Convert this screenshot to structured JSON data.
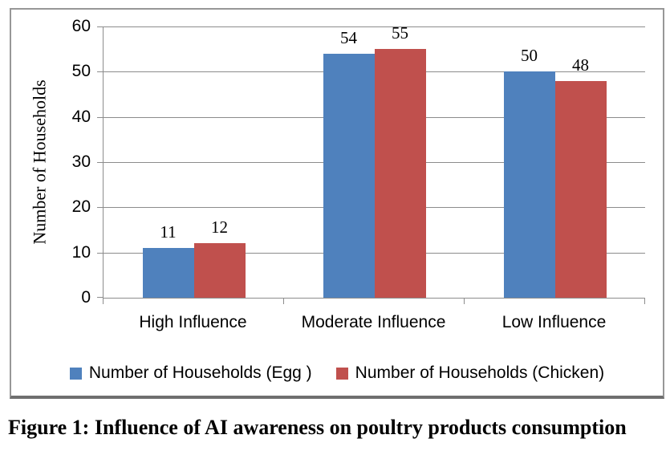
{
  "figure": {
    "caption": "Figure 1: Influence of AI awareness on poultry products consumption"
  },
  "chart_data": {
    "type": "bar",
    "title": "",
    "categories": [
      "High Influence",
      "Moderate Influence",
      "Low Influence"
    ],
    "series": [
      {
        "name": "Number of Households (Egg )",
        "color": "#4F81BD",
        "values": [
          11,
          54,
          50
        ]
      },
      {
        "name": "Number of Households (Chicken)",
        "color": "#C0504D",
        "values": [
          12,
          55,
          48
        ]
      }
    ],
    "xlabel": "",
    "ylabel": "Number of Households",
    "ylim": [
      0,
      60
    ],
    "yticks": [
      0,
      10,
      20,
      30,
      40,
      50,
      60
    ],
    "grid": true,
    "data_labels": true,
    "legend_position": "bottom",
    "colors": {
      "gridline": "#8c8c8c",
      "axis": "#8c8c8c",
      "frame_border": "#979797",
      "frame_border_bottom": "#6f6f6f",
      "text": "#000000"
    }
  }
}
